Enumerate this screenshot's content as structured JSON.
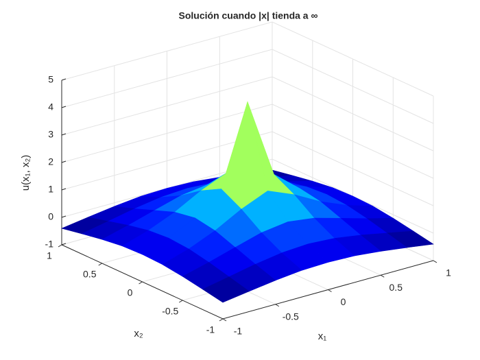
{
  "chart_data": {
    "type": "surface",
    "title": "Solución cuando |x| tienda a ∞",
    "xlabel": "x₁",
    "ylabel": "x₂",
    "zlabel": "u(x₁, x₂)",
    "x": [
      -1,
      -0.75,
      -0.5,
      -0.25,
      0,
      0.25,
      0.5,
      0.75,
      1
    ],
    "y": [
      -1,
      -0.75,
      -0.5,
      -0.25,
      0,
      0.25,
      0.5,
      0.75,
      1
    ],
    "z": [
      [
        -0.4,
        -0.26,
        -0.13,
        -0.03,
        0,
        -0.03,
        -0.13,
        -0.26,
        -0.4
      ],
      [
        -0.26,
        -0.07,
        0.12,
        0.27,
        0.33,
        0.27,
        0.12,
        -0.07,
        -0.26
      ],
      [
        -0.13,
        0.12,
        0.4,
        0.67,
        0.8,
        0.67,
        0.4,
        0.12,
        -0.13
      ],
      [
        -0.03,
        0.27,
        0.67,
        1.19,
        1.59,
        1.19,
        0.67,
        0.27,
        -0.03
      ],
      [
        0,
        0.33,
        0.8,
        1.59,
        4.5,
        1.59,
        0.8,
        0.33,
        0
      ],
      [
        -0.03,
        0.27,
        0.67,
        1.19,
        1.59,
        1.19,
        0.67,
        0.27,
        -0.03
      ],
      [
        -0.13,
        0.12,
        0.4,
        0.67,
        0.8,
        0.67,
        0.4,
        0.12,
        -0.13
      ],
      [
        -0.26,
        -0.07,
        0.12,
        0.27,
        0.33,
        0.27,
        0.12,
        -0.07,
        -0.26
      ],
      [
        -0.4,
        -0.26,
        -0.13,
        -0.03,
        0,
        -0.03,
        -0.13,
        -0.26,
        -0.4
      ]
    ],
    "xlim": [
      -1,
      1
    ],
    "ylim": [
      -1,
      1
    ],
    "zlim": [
      -1,
      5
    ],
    "xticks": [
      -1,
      -0.5,
      0,
      0.5,
      1
    ],
    "yticks": [
      -1,
      -0.5,
      0,
      0.5,
      1
    ],
    "zticks": [
      -1,
      0,
      1,
      2,
      3,
      4,
      5
    ],
    "colormap": "jet",
    "grid": true
  }
}
